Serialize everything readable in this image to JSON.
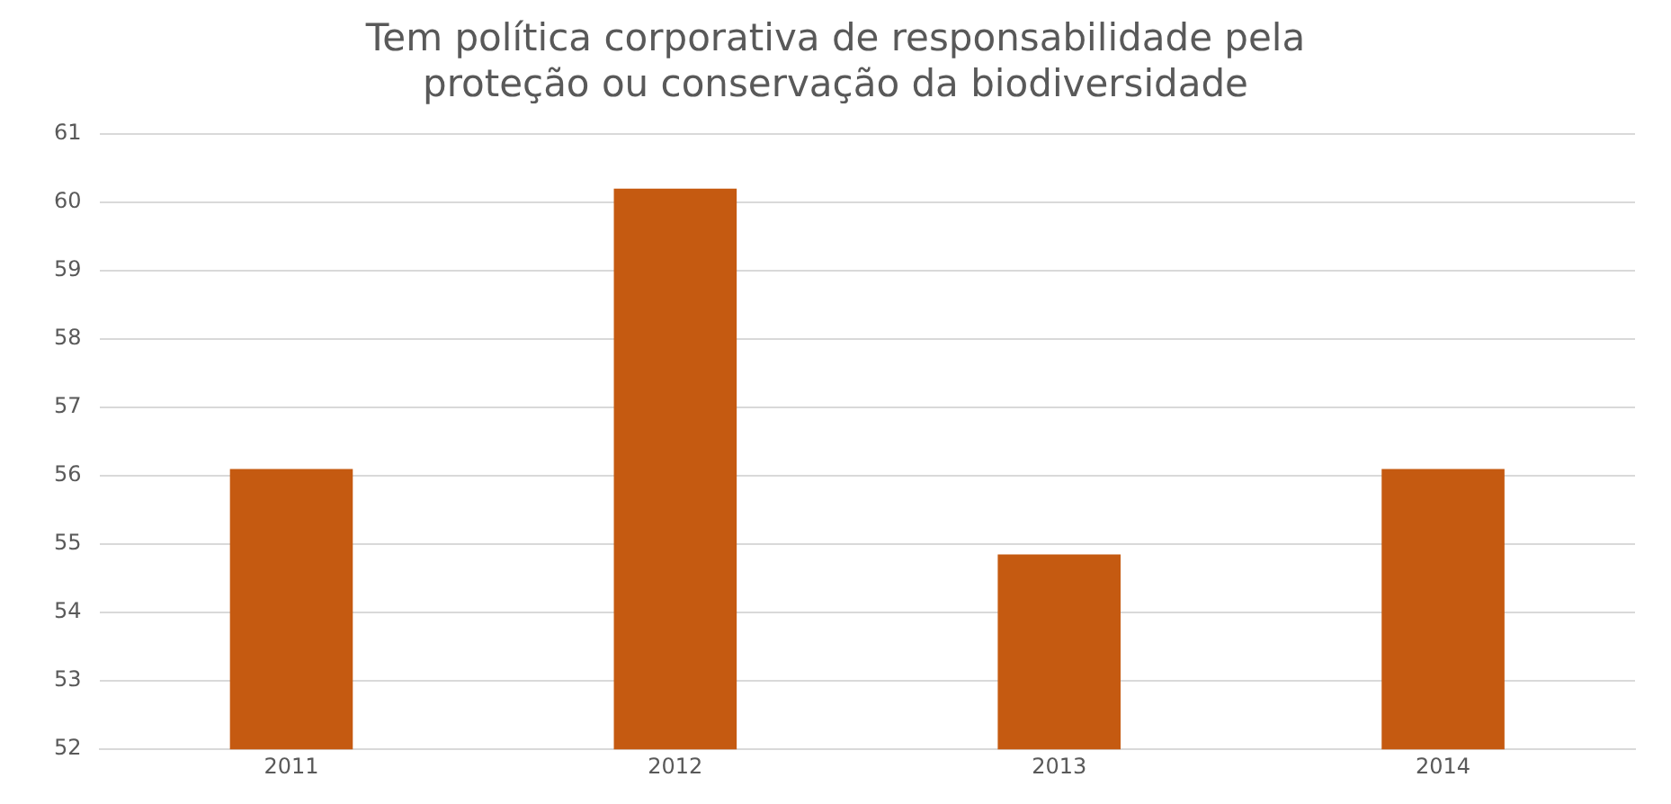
{
  "chart_data": {
    "type": "bar",
    "title": [
      "Tem política corporativa de responsabilidade pela",
      "proteção ou conservação da biodiversidade"
    ],
    "categories": [
      "2011",
      "2012",
      "2013",
      "2014"
    ],
    "values": [
      56.1,
      60.2,
      54.85,
      56.1
    ],
    "color": "#c55a11",
    "ylim": [
      52,
      61
    ],
    "yticks": [
      52,
      53,
      54,
      55,
      56,
      57,
      58,
      59,
      60,
      61
    ],
    "grid": "y"
  }
}
